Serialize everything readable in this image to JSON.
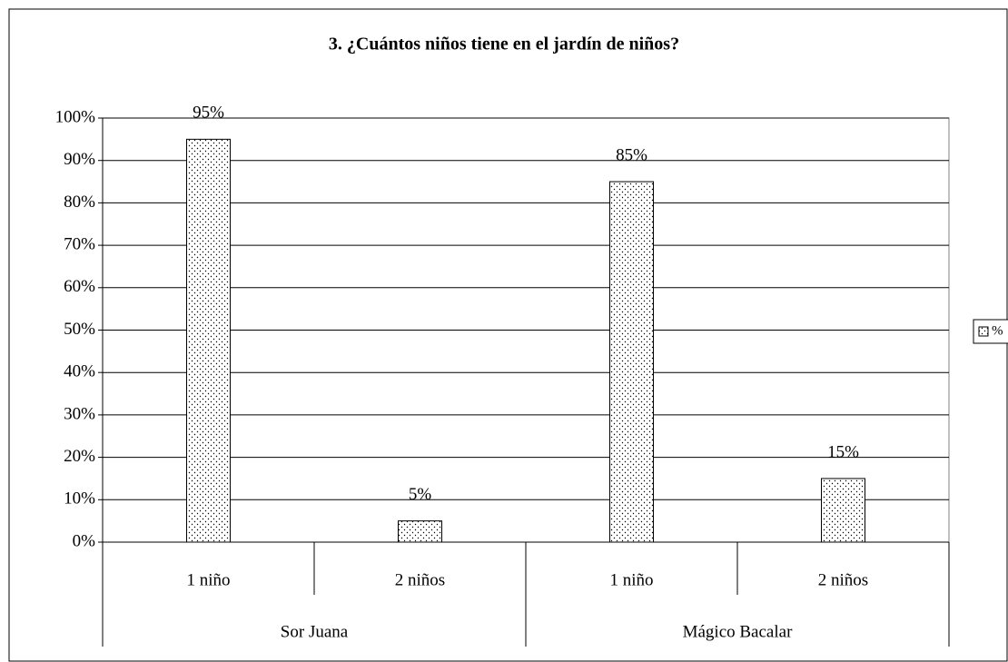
{
  "chart_data": {
    "type": "bar",
    "title": "3. ¿Cuántos niños tiene en el jardín de niños?",
    "categories": [
      "1 niño",
      "2 niños",
      "1 niño",
      "2 niños"
    ],
    "groups": [
      "Sor Juana",
      "Mágico Bacalar"
    ],
    "series": [
      {
        "name": "%",
        "color": "#ffffff",
        "values": [
          95,
          5,
          85,
          15
        ],
        "value_labels": [
          "95%",
          "5%",
          "85%",
          "15%"
        ]
      }
    ],
    "ylim": [
      0,
      100
    ],
    "yticks": [
      {
        "value": 0,
        "label": "0%"
      },
      {
        "value": 10,
        "label": "10%"
      },
      {
        "value": 20,
        "label": "20%"
      },
      {
        "value": 30,
        "label": "30%"
      },
      {
        "value": 40,
        "label": "40%"
      },
      {
        "value": 50,
        "label": "50%"
      },
      {
        "value": 60,
        "label": "60%"
      },
      {
        "value": 70,
        "label": "70%"
      },
      {
        "value": 80,
        "label": "80%"
      },
      {
        "value": 90,
        "label": "90%"
      },
      {
        "value": 100,
        "label": "100%"
      }
    ],
    "grid": true,
    "legend": "right"
  }
}
